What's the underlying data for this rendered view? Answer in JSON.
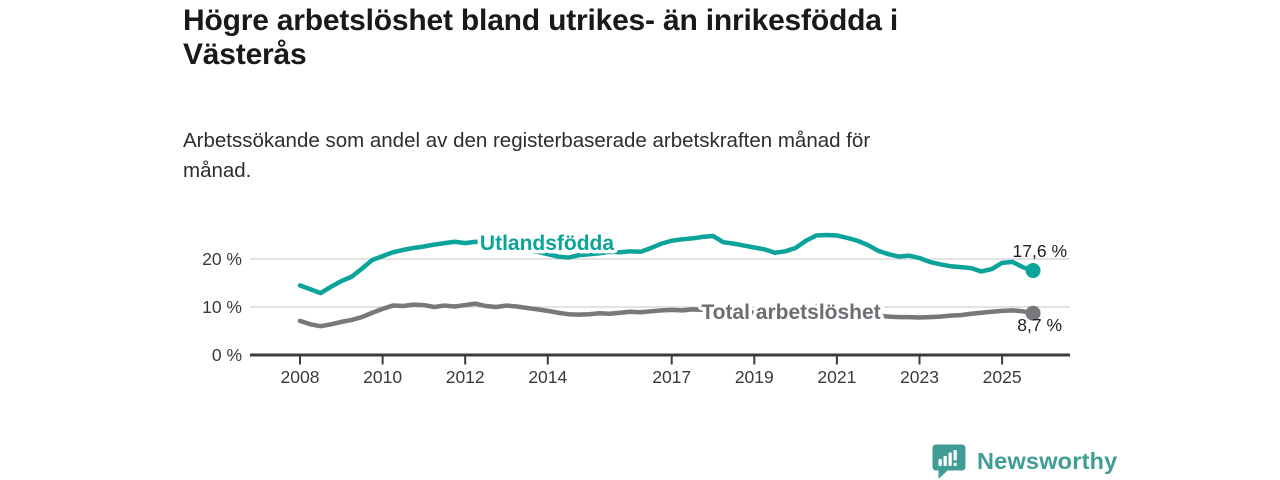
{
  "header": {
    "title": "Högre arbetslöshet bland utrikes- än inrikesfödda i\nVästerås",
    "subtitle": "Arbetssökande som andel av den registerbaserade arbetskraften månad för\nmånad."
  },
  "footer": {
    "brand": "Newsworthy",
    "brand_color": "#3f9d96",
    "logo_icon": "newsworthy-bar-chart-speech-bubble-icon"
  },
  "chart_data": {
    "type": "line",
    "title": "Högre arbetslöshet bland utrikes- än inrikesfödda i Västerås",
    "subtitle": "Arbetssökande som andel av den registerbaserade arbetskraften månad för månad.",
    "xlabel": "",
    "ylabel": "",
    "x_unit": "year (quarterly points)",
    "x_start": 2008.0,
    "x_step": 0.25,
    "x_tick_values": [
      2008,
      2010,
      2012,
      2014,
      2017,
      2019,
      2021,
      2023,
      2025
    ],
    "x_tick_labels": [
      "2008",
      "2010",
      "2012",
      "2014",
      "2017",
      "2019",
      "2021",
      "2023",
      "2025"
    ],
    "y_tick_values": [
      0,
      10,
      20
    ],
    "y_tick_labels": [
      "0 %",
      "10 %",
      "20 %"
    ],
    "ylim": [
      0,
      27
    ],
    "grid": "horizontal-only",
    "legend": "inline-series-labels",
    "axis_color": "#3b3b3b",
    "grid_color": "#d2d2d2",
    "series": [
      {
        "name": "Utlandsfödda",
        "color": "#0ca39a",
        "label_color": "#0ca39a",
        "end_label": "17,6 %",
        "end_value": 17.6,
        "values": [
          14.5,
          13.7,
          12.9,
          14.2,
          15.4,
          16.3,
          18.0,
          19.8,
          20.6,
          21.4,
          21.9,
          22.3,
          22.6,
          23.0,
          23.3,
          23.6,
          23.3,
          23.6,
          23.2,
          23.0,
          22.8,
          22.4,
          22.0,
          21.5,
          21.0,
          20.5,
          20.3,
          20.8,
          21.0,
          21.2,
          21.5,
          21.4,
          21.6,
          21.5,
          22.3,
          23.2,
          23.8,
          24.1,
          24.3,
          24.6,
          24.8,
          23.5,
          23.2,
          22.8,
          22.4,
          22.0,
          21.3,
          21.6,
          22.3,
          23.8,
          24.9,
          25.0,
          24.9,
          24.4,
          23.8,
          22.9,
          21.7,
          21.0,
          20.5,
          20.7,
          20.2,
          19.4,
          18.9,
          18.5,
          18.3,
          18.1,
          17.4,
          17.9,
          19.2,
          19.4,
          18.3,
          17.6
        ]
      },
      {
        "name": "Total arbetslöshet",
        "color": "#77777c",
        "label_color": "#6d6d73",
        "end_label": "8,7 %",
        "end_value": 8.7,
        "values": [
          7.1,
          6.4,
          6.0,
          6.4,
          6.9,
          7.3,
          7.9,
          8.8,
          9.6,
          10.3,
          10.2,
          10.5,
          10.4,
          10.0,
          10.3,
          10.1,
          10.4,
          10.7,
          10.2,
          10.0,
          10.3,
          10.1,
          9.8,
          9.5,
          9.2,
          8.8,
          8.5,
          8.4,
          8.5,
          8.7,
          8.6,
          8.8,
          9.0,
          8.9,
          9.1,
          9.3,
          9.4,
          9.3,
          9.5,
          9.4,
          9.2,
          9.0,
          8.9,
          8.8,
          8.9,
          8.7,
          8.6,
          8.8,
          9.2,
          9.8,
          10.2,
          10.0,
          9.7,
          9.3,
          8.9,
          8.5,
          8.2,
          8.0,
          7.9,
          7.9,
          7.8,
          7.9,
          8.0,
          8.2,
          8.3,
          8.6,
          8.8,
          9.0,
          9.2,
          9.3,
          9.1,
          8.7
        ]
      }
    ]
  }
}
